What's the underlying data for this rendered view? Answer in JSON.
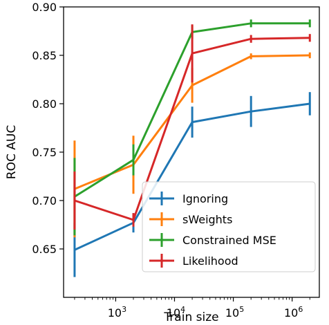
{
  "chart_data": {
    "type": "line",
    "xlabel": "Train size",
    "ylabel": "ROC AUC",
    "xscale": "log",
    "xlim": [
      130,
      2900000
    ],
    "ylim": [
      0.6,
      0.9
    ],
    "grid": false,
    "legend_position": "lower-right",
    "x_ticks": [
      {
        "value": 1000,
        "base": "10",
        "exp": "3"
      },
      {
        "value": 10000,
        "base": "10",
        "exp": "4"
      },
      {
        "value": 100000,
        "base": "10",
        "exp": "5"
      },
      {
        "value": 1000000,
        "base": "10",
        "exp": "6"
      }
    ],
    "y_ticks": [
      "0.65",
      "0.70",
      "0.75",
      "0.80",
      "0.85",
      "0.90"
    ],
    "x": [
      200,
      2000,
      20000,
      200000,
      2000000
    ],
    "series": [
      {
        "name": "Ignoring",
        "color": "#1f77b4",
        "values": [
          0.649,
          0.677,
          0.781,
          0.792,
          0.8
        ],
        "errors": [
          0.028,
          0.01,
          0.016,
          0.016,
          0.012
        ]
      },
      {
        "name": "sWeights",
        "color": "#ff7f0e",
        "values": [
          0.712,
          0.737,
          0.819,
          0.849,
          0.85
        ],
        "errors": [
          0.05,
          0.03,
          0.018,
          0.003,
          0.003
        ]
      },
      {
        "name": "Constrained MSE",
        "color": "#2ca02c",
        "values": [
          0.704,
          0.742,
          0.874,
          0.883,
          0.883
        ],
        "errors": [
          0.04,
          0.016,
          0.007,
          0.004,
          0.004
        ]
      },
      {
        "name": "Likelihood",
        "color": "#d62728",
        "values": [
          0.7,
          0.68,
          0.852,
          0.867,
          0.868
        ],
        "errors": [
          0.03,
          0.007,
          0.03,
          0.004,
          0.004
        ]
      }
    ]
  }
}
